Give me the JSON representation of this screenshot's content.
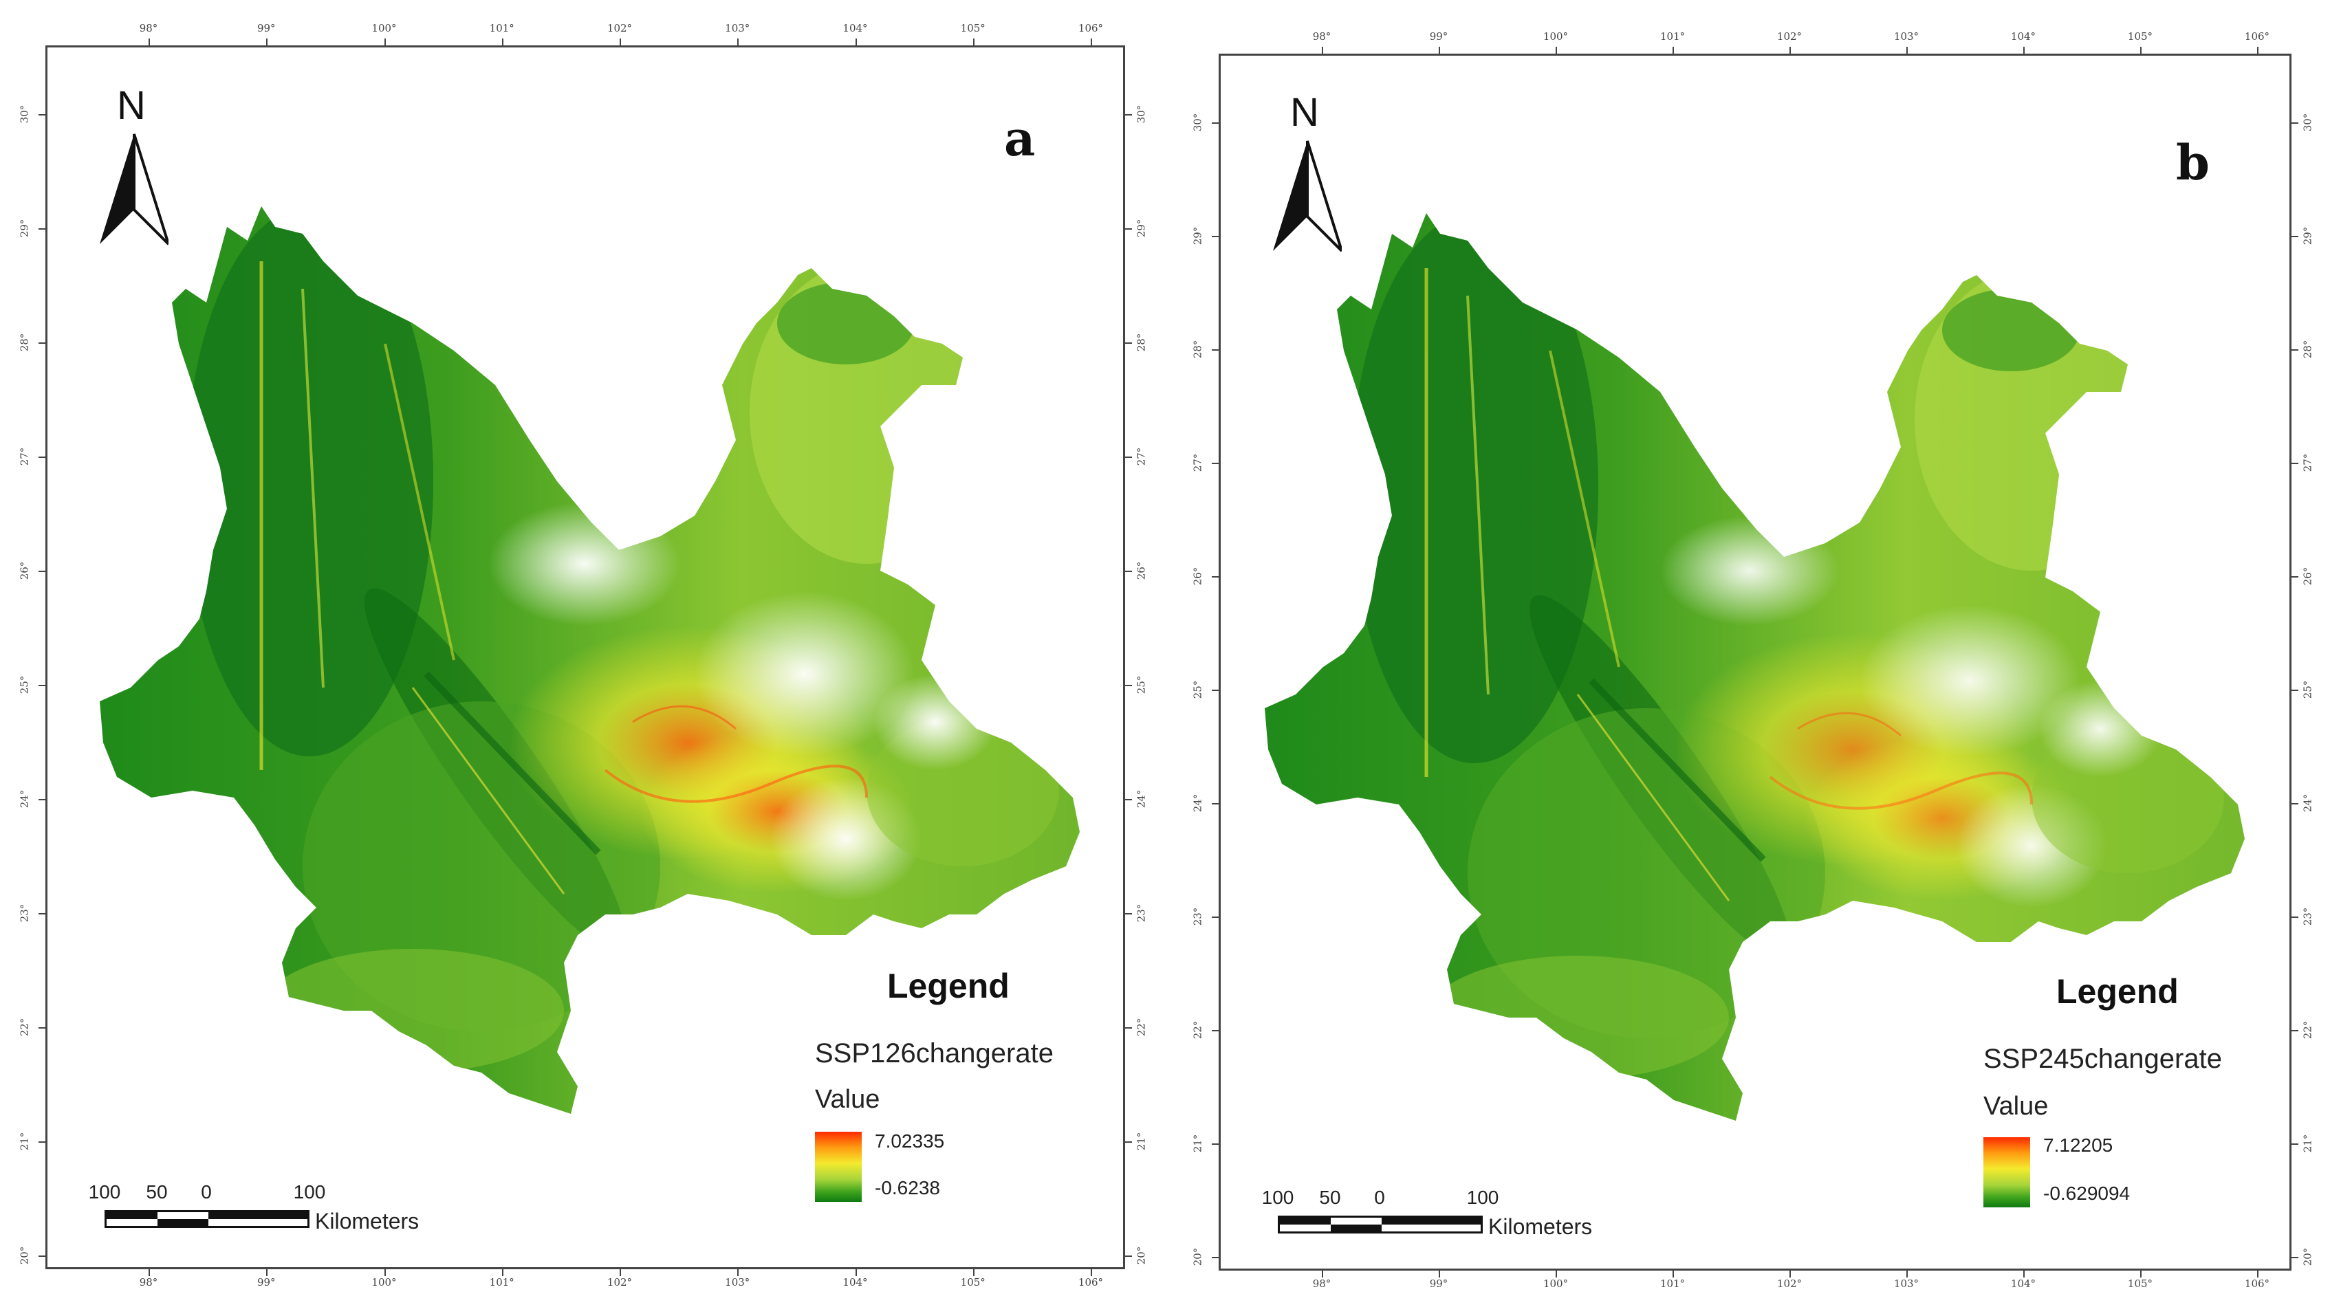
{
  "colors": {
    "high": "#ff2a00",
    "mid_high": "#ff9a10",
    "mid": "#f4ea2e",
    "mid_low": "#a7d53a",
    "low": "#0e7a12",
    "frame": "#444444"
  },
  "icons": [
    "north-arrow-icon"
  ],
  "panels": [
    {
      "letter": "a",
      "north_label": "N",
      "legend": {
        "title": "Legend",
        "layer_name": "SSP126changerate",
        "value_label": "Value",
        "max_value": "7.02335",
        "min_value": "-0.6238"
      },
      "scalebar": {
        "labels": [
          "100",
          "50",
          "0",
          "100"
        ],
        "unit": "Kilometers"
      },
      "lon_ticks": [
        "98°",
        "99°",
        "100°",
        "101°",
        "102°",
        "103°",
        "104°",
        "105°",
        "106°"
      ],
      "lat_ticks": [
        "30°",
        "29°",
        "28°",
        "27°",
        "26°",
        "25°",
        "24°",
        "23°",
        "22°",
        "21°",
        "20°"
      ]
    },
    {
      "letter": "b",
      "north_label": "N",
      "legend": {
        "title": "Legend",
        "layer_name": "SSP245changerate",
        "value_label": "Value",
        "max_value": "7.12205",
        "min_value": "-0.629094"
      },
      "scalebar": {
        "labels": [
          "100",
          "50",
          "0",
          "100"
        ],
        "unit": "Kilometers"
      },
      "lon_ticks": [
        "98°",
        "99°",
        "100°",
        "101°",
        "102°",
        "103°",
        "104°",
        "105°",
        "106°"
      ],
      "lat_ticks": [
        "30°",
        "29°",
        "28°",
        "27°",
        "26°",
        "25°",
        "24°",
        "23°",
        "22°",
        "21°",
        "20°"
      ]
    }
  ]
}
